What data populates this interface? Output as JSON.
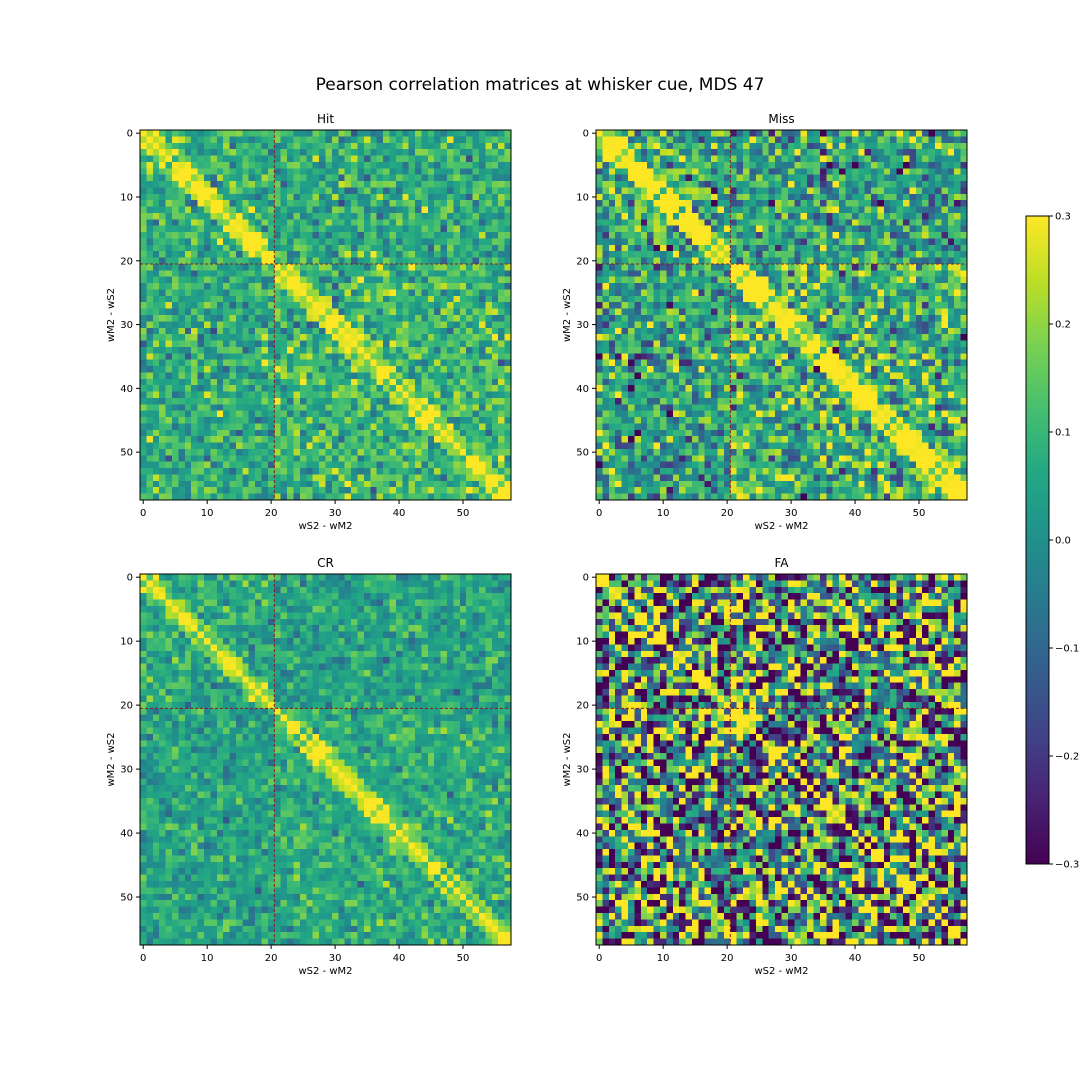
{
  "chart_data": {
    "type": "heatmap",
    "title": "Pearson correlation matrices at whisker cue, MDS 47",
    "matrix_size": 58,
    "divider_index": 20.5,
    "divider_color": "#8b1a1a",
    "colormap": "viridis",
    "vmin": -0.3,
    "vmax": 0.3,
    "colorbar": {
      "ticks": [
        0.3,
        0.2,
        0.1,
        0.0,
        -0.1,
        -0.2,
        -0.3
      ],
      "tick_labels": [
        "0.3",
        "0.2",
        "0.1",
        "0.0",
        "−0.1",
        "−0.2",
        "−0.3"
      ]
    },
    "panels": [
      {
        "title": "Hit",
        "xlabel": "wS2     -     wM2",
        "ylabel": "wM2     -     wS2",
        "xticks": [
          "0",
          "10",
          "20",
          "30",
          "40",
          "50"
        ],
        "yticks": [
          "0",
          "10",
          "20",
          "30",
          "40",
          "50"
        ],
        "noise_mean": 0.07,
        "noise_sd": 0.08,
        "block_boost": 0.12,
        "seed": 11
      },
      {
        "title": "Miss",
        "xlabel": "wS2     -     wM2",
        "ylabel": "wM2     -     wS2",
        "xticks": [
          "0",
          "10",
          "20",
          "30",
          "40",
          "50"
        ],
        "yticks": [
          "0",
          "10",
          "20",
          "30",
          "40",
          "50"
        ],
        "noise_mean": 0.03,
        "noise_sd": 0.13,
        "block_boost": 0.2,
        "seed": 23
      },
      {
        "title": "CR",
        "xlabel": "wS2     -     wM2",
        "ylabel": "wM2     -     wS2",
        "xticks": [
          "0",
          "10",
          "20",
          "30",
          "40",
          "50"
        ],
        "yticks": [
          "0",
          "10",
          "20",
          "30",
          "40",
          "50"
        ],
        "noise_mean": 0.05,
        "noise_sd": 0.06,
        "block_boost": 0.1,
        "seed": 37
      },
      {
        "title": "FA",
        "xlabel": "wS2     -     wM2",
        "ylabel": "wM2     -     wS2",
        "xticks": [
          "0",
          "10",
          "20",
          "30",
          "40",
          "50"
        ],
        "yticks": [
          "0",
          "10",
          "20",
          "30",
          "40",
          "50"
        ],
        "noise_mean": 0.0,
        "noise_sd": 0.32,
        "block_boost": 0.0,
        "seed": 53
      }
    ]
  }
}
